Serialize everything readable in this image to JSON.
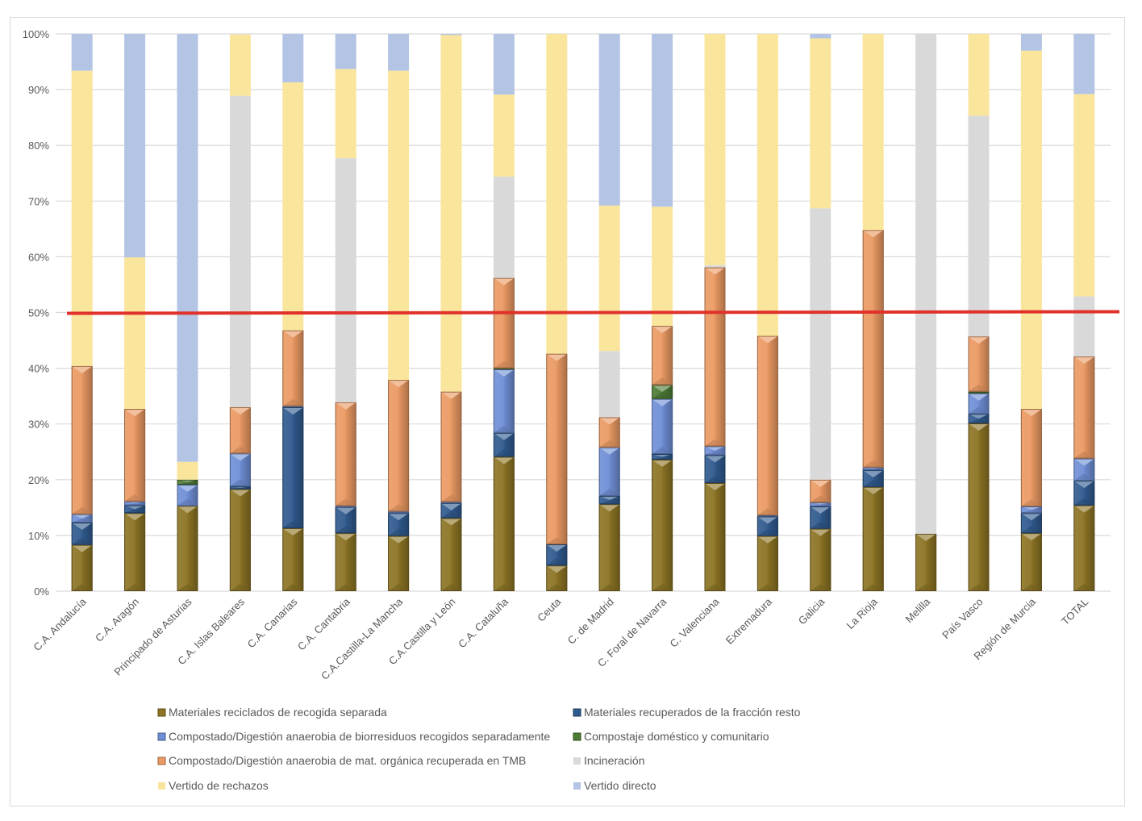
{
  "chart_data": {
    "type": "bar",
    "stacked": true,
    "normalized": true,
    "title": "",
    "xlabel": "",
    "ylabel": "",
    "ylim": [
      0,
      100
    ],
    "y_ticks": [
      "0%",
      "10%",
      "20%",
      "30%",
      "40%",
      "50%",
      "60%",
      "70%",
      "80%",
      "90%",
      "100%"
    ],
    "grid": true,
    "legend_position": "bottom",
    "reference_line": {
      "value": 50,
      "color": "#e0312b",
      "label": ""
    },
    "categories": [
      "C.A. Andalucía",
      "C.A. Aragón",
      "Principado de Asturias",
      "C.A. Islas Baleares",
      "C.A. Canarias",
      "C.A. Cantabria",
      "C.A.Castilla-La Mancha",
      "C.A.Castilla y León",
      "C.A. Cataluña",
      "Ceuta",
      "C. de Madrid",
      "C. Foral de Navarra",
      "C. Valenciana",
      "Extremadura",
      "Galicia",
      "La Rioja",
      "Melilla",
      "País Vasco",
      "Región de Murcia",
      "TOTAL"
    ],
    "series": [
      {
        "name": "Materiales reciclados de recogida separada",
        "color": "#8c7424",
        "beveled": true,
        "values": [
          8.3,
          14.0,
          15.3,
          18.3,
          11.3,
          10.4,
          9.9,
          13.1,
          24.1,
          4.6,
          15.6,
          23.6,
          19.4,
          9.9,
          11.2,
          18.7,
          10.3,
          30.1,
          10.4,
          15.4
        ]
      },
      {
        "name": "Materiales recuperados de la fracción resto",
        "color": "#2f5a8e",
        "beveled": true,
        "values": [
          4.0,
          1.4,
          0.0,
          0.5,
          21.7,
          4.7,
          4.1,
          2.7,
          4.3,
          3.8,
          1.5,
          1.0,
          5.0,
          3.5,
          4.0,
          3.0,
          0.0,
          1.7,
          3.6,
          4.4
        ]
      },
      {
        "name": "Compostado/Digestión anaerobia de biorresiduos recogidos separadamente",
        "color": "#6f8fd6",
        "beveled": true,
        "values": [
          1.5,
          0.7,
          3.8,
          5.9,
          0.2,
          0.2,
          0.3,
          0.2,
          11.4,
          0.0,
          8.7,
          9.9,
          1.6,
          0.2,
          0.7,
          0.5,
          0.0,
          3.7,
          1.2,
          4.0
        ]
      },
      {
        "name": "Compostaje doméstico y comunitario",
        "color": "#4d7a35",
        "beveled": true,
        "values": [
          0.0,
          0.0,
          0.9,
          0.0,
          0.0,
          0.0,
          0.0,
          0.0,
          0.2,
          0.0,
          0.0,
          2.5,
          0.0,
          0.0,
          0.0,
          0.0,
          0.0,
          0.3,
          0.0,
          0.0
        ]
      },
      {
        "name": "Compostado/Digestión anaerobia de mat. orgánica recuperada en TMB",
        "color": "#eb9a63",
        "beveled": true,
        "values": [
          26.6,
          16.6,
          0.0,
          8.3,
          13.6,
          18.6,
          23.6,
          19.8,
          16.2,
          34.2,
          5.4,
          10.6,
          32.1,
          32.2,
          4.1,
          42.6,
          0.0,
          9.9,
          17.5,
          18.3
        ]
      },
      {
        "name": "Incineración",
        "color": "#d9d9d9",
        "beveled": false,
        "values": [
          0.0,
          0.0,
          0.0,
          55.9,
          0.0,
          43.8,
          0.0,
          0.0,
          18.2,
          0.0,
          11.9,
          0.0,
          0.4,
          0.0,
          48.7,
          0.0,
          89.7,
          39.6,
          0.0,
          10.8
        ]
      },
      {
        "name": "Vertido de rechazos",
        "color": "#fae59c",
        "beveled": false,
        "values": [
          53.0,
          27.2,
          3.2,
          11.0,
          44.5,
          16.0,
          55.5,
          64.0,
          14.7,
          57.4,
          26.1,
          21.4,
          41.5,
          54.2,
          30.5,
          35.2,
          0.0,
          14.7,
          64.3,
          36.3
        ]
      },
      {
        "name": "Vertido directo",
        "color": "#b4c4e4",
        "beveled": false,
        "values": [
          6.6,
          40.1,
          76.8,
          0.0,
          8.7,
          6.3,
          6.6,
          0.2,
          10.9,
          0.0,
          30.8,
          31.0,
          0.0,
          0.0,
          0.8,
          0.0,
          0.0,
          0.0,
          3.0,
          10.8
        ]
      }
    ]
  }
}
